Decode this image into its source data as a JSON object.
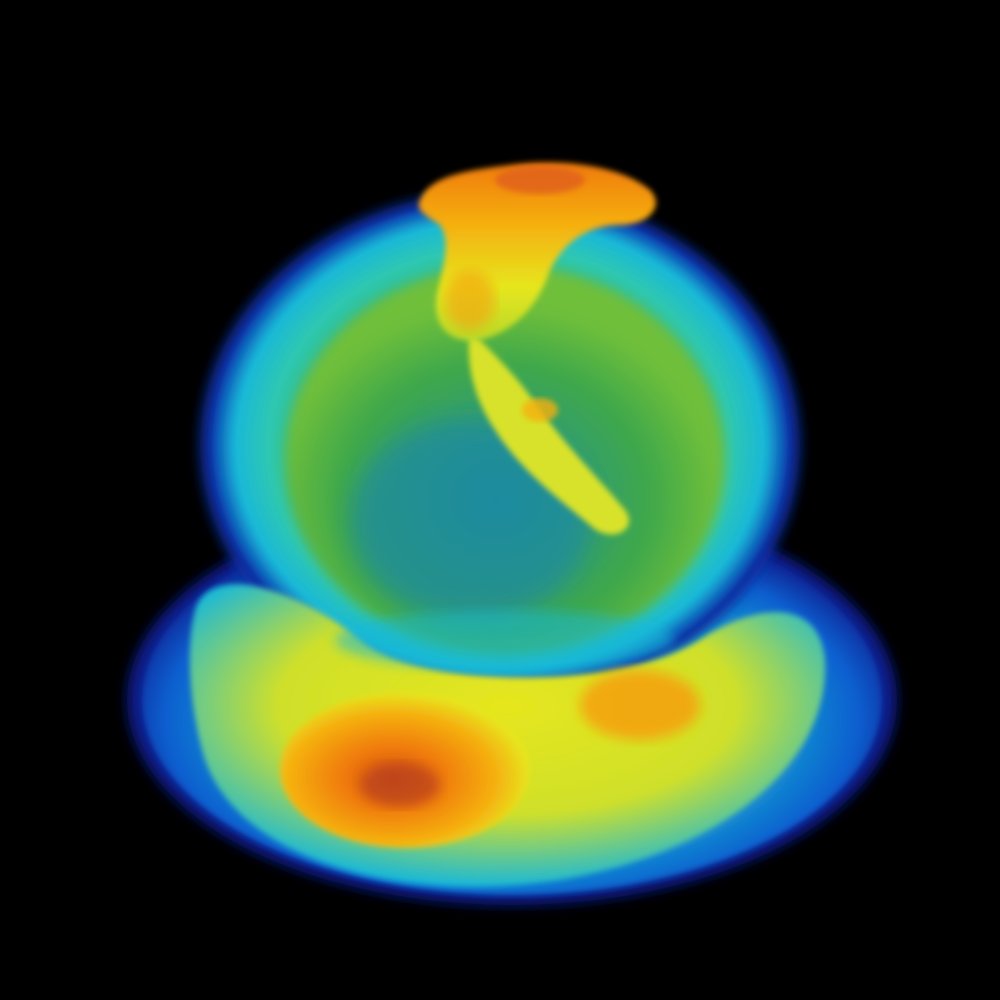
{
  "scene": {
    "background_color": "#000000",
    "subject": "volume-rendering",
    "colormap": [
      "#0a1a8a",
      "#0a5fd0",
      "#19b8d8",
      "#2fc8b0",
      "#3fb04a",
      "#9fd23a",
      "#e6e61e",
      "#f5b010",
      "#f07a0a",
      "#c8501a"
    ]
  }
}
